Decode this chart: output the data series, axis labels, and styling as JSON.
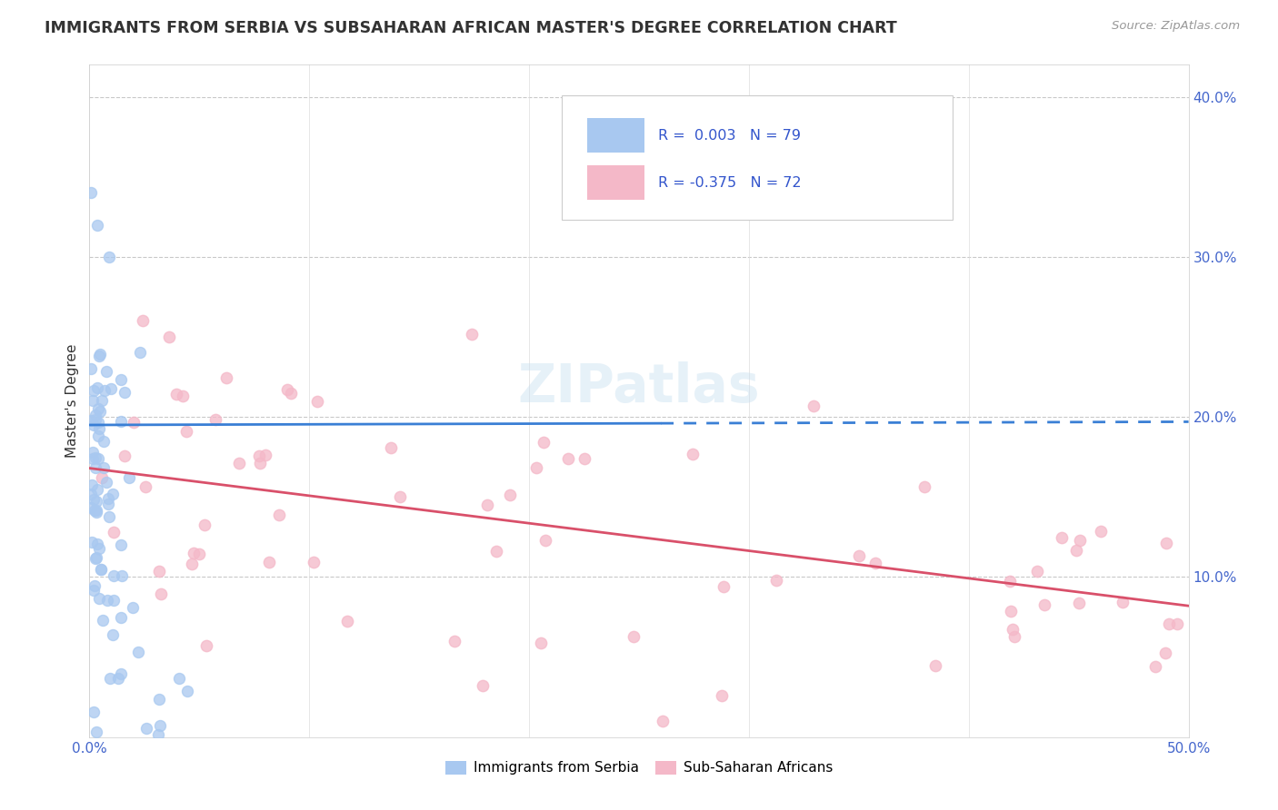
{
  "title": "IMMIGRANTS FROM SERBIA VS SUBSAHARAN AFRICAN MASTER'S DEGREE CORRELATION CHART",
  "source": "Source: ZipAtlas.com",
  "ylabel": "Master's Degree",
  "xlim": [
    0.0,
    0.5
  ],
  "ylim": [
    0.0,
    0.42
  ],
  "serbia_R": 0.003,
  "serbia_N": 79,
  "subsaharan_R": -0.375,
  "subsaharan_N": 72,
  "serbia_color": "#a8c8f0",
  "subsaharan_color": "#f4b8c8",
  "serbia_line_color": "#3a7fd5",
  "subsaharan_line_color": "#d9506a",
  "watermark": "ZIPatlas",
  "serbia_line_start_y": 0.195,
  "serbia_line_end_y": 0.197,
  "subsaharan_line_start_y": 0.168,
  "subsaharan_line_end_y": 0.082
}
